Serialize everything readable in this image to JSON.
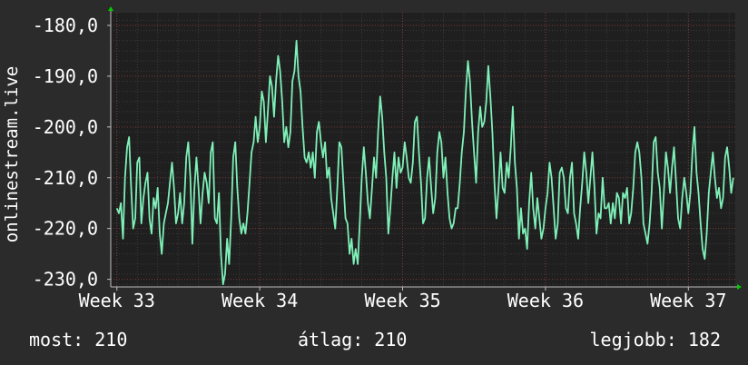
{
  "chart_data": {
    "type": "line",
    "ylabel": "onlinestream.live",
    "y_ticks": [
      "-180,0",
      "-190,0",
      "-200,0",
      "-210,0",
      "-220,0",
      "-230,0"
    ],
    "y_tick_values": [
      -180,
      -190,
      -200,
      -210,
      -220,
      -230
    ],
    "ylim": [
      -231.5,
      -177.5
    ],
    "x_ticks": [
      "Week 33",
      "Week 34",
      "Week 35",
      "Week 36",
      "Week 37"
    ],
    "x_tick_values": [
      0,
      7,
      14,
      21,
      28
    ],
    "xlim": [
      -0.3,
      30.3
    ],
    "grid": true,
    "series": [
      {
        "color": "#7ef0b8",
        "points": [
          [
            0.0,
            -216
          ],
          [
            0.1,
            -217
          ],
          [
            0.2,
            -215
          ],
          [
            0.3,
            -222
          ],
          [
            0.4,
            -210
          ],
          [
            0.5,
            -204
          ],
          [
            0.6,
            -202
          ],
          [
            0.7,
            -212
          ],
          [
            0.8,
            -220
          ],
          [
            0.9,
            -218
          ],
          [
            1.0,
            -207
          ],
          [
            1.1,
            -206
          ],
          [
            1.2,
            -219
          ],
          [
            1.3,
            -214
          ],
          [
            1.4,
            -211
          ],
          [
            1.5,
            -209
          ],
          [
            1.6,
            -218
          ],
          [
            1.7,
            -221
          ],
          [
            1.8,
            -214
          ],
          [
            1.9,
            -216
          ],
          [
            2.0,
            -212
          ],
          [
            2.1,
            -221
          ],
          [
            2.2,
            -225
          ],
          [
            2.3,
            -219
          ],
          [
            2.4,
            -217
          ],
          [
            2.5,
            -215
          ],
          [
            2.6,
            -211
          ],
          [
            2.7,
            -207
          ],
          [
            2.8,
            -212
          ],
          [
            2.9,
            -219
          ],
          [
            3.0,
            -217
          ],
          [
            3.1,
            -213
          ],
          [
            3.2,
            -219
          ],
          [
            3.3,
            -215
          ],
          [
            3.4,
            -206
          ],
          [
            3.5,
            -203
          ],
          [
            3.6,
            -210
          ],
          [
            3.7,
            -223
          ],
          [
            3.8,
            -212
          ],
          [
            3.9,
            -206
          ],
          [
            4.0,
            -212
          ],
          [
            4.1,
            -219
          ],
          [
            4.2,
            -213
          ],
          [
            4.3,
            -209
          ],
          [
            4.4,
            -211
          ],
          [
            4.5,
            -215
          ],
          [
            4.6,
            -205
          ],
          [
            4.7,
            -203
          ],
          [
            4.8,
            -218
          ],
          [
            4.9,
            -219
          ],
          [
            5.0,
            -213
          ],
          [
            5.1,
            -225
          ],
          [
            5.2,
            -231
          ],
          [
            5.3,
            -229
          ],
          [
            5.4,
            -222
          ],
          [
            5.5,
            -227
          ],
          [
            5.6,
            -218
          ],
          [
            5.7,
            -206
          ],
          [
            5.8,
            -203
          ],
          [
            5.9,
            -212
          ],
          [
            6.0,
            -218
          ],
          [
            6.1,
            -221
          ],
          [
            6.2,
            -219
          ],
          [
            6.3,
            -221
          ],
          [
            6.4,
            -217
          ],
          [
            6.5,
            -211
          ],
          [
            6.6,
            -205
          ],
          [
            6.7,
            -203
          ],
          [
            6.8,
            -198
          ],
          [
            6.9,
            -203
          ],
          [
            7.0,
            -200
          ],
          [
            7.1,
            -193
          ],
          [
            7.2,
            -195
          ],
          [
            7.3,
            -203
          ],
          [
            7.4,
            -197
          ],
          [
            7.5,
            -190
          ],
          [
            7.6,
            -192
          ],
          [
            7.7,
            -198
          ],
          [
            7.8,
            -191
          ],
          [
            7.9,
            -186
          ],
          [
            8.0,
            -189
          ],
          [
            8.1,
            -195
          ],
          [
            8.2,
            -203
          ],
          [
            8.3,
            -200
          ],
          [
            8.4,
            -204
          ],
          [
            8.5,
            -201
          ],
          [
            8.6,
            -191
          ],
          [
            8.7,
            -189
          ],
          [
            8.8,
            -183
          ],
          [
            8.9,
            -190
          ],
          [
            9.0,
            -193
          ],
          [
            9.1,
            -200
          ],
          [
            9.2,
            -206
          ],
          [
            9.3,
            -207
          ],
          [
            9.4,
            -205
          ],
          [
            9.5,
            -208
          ],
          [
            9.6,
            -205
          ],
          [
            9.7,
            -210
          ],
          [
            9.8,
            -201
          ],
          [
            9.9,
            -199
          ],
          [
            10.0,
            -203
          ],
          [
            10.1,
            -206
          ],
          [
            10.2,
            -203
          ],
          [
            10.3,
            -210
          ],
          [
            10.4,
            -208
          ],
          [
            10.5,
            -214
          ],
          [
            10.6,
            -217
          ],
          [
            10.7,
            -220
          ],
          [
            10.8,
            -212
          ],
          [
            10.9,
            -203
          ],
          [
            11.0,
            -204
          ],
          [
            11.1,
            -211
          ],
          [
            11.2,
            -218
          ],
          [
            11.3,
            -219
          ],
          [
            11.4,
            -225
          ],
          [
            11.5,
            -222
          ],
          [
            11.6,
            -227
          ],
          [
            11.7,
            -224
          ],
          [
            11.8,
            -227
          ],
          [
            11.9,
            -219
          ],
          [
            12.0,
            -210
          ],
          [
            12.1,
            -204
          ],
          [
            12.2,
            -209
          ],
          [
            12.3,
            -215
          ],
          [
            12.4,
            -218
          ],
          [
            12.5,
            -212
          ],
          [
            12.6,
            -206
          ],
          [
            12.7,
            -210
          ],
          [
            12.8,
            -201
          ],
          [
            12.9,
            -194
          ],
          [
            13.0,
            -198
          ],
          [
            13.1,
            -205
          ],
          [
            13.2,
            -210
          ],
          [
            13.3,
            -221
          ],
          [
            13.4,
            -216
          ],
          [
            13.5,
            -210
          ],
          [
            13.6,
            -205
          ],
          [
            13.7,
            -212
          ],
          [
            13.8,
            -206
          ],
          [
            13.9,
            -209
          ],
          [
            14.0,
            -208
          ],
          [
            14.1,
            -203
          ],
          [
            14.2,
            -206
          ],
          [
            14.3,
            -210
          ],
          [
            14.4,
            -211
          ],
          [
            14.5,
            -207
          ],
          [
            14.6,
            -199
          ],
          [
            14.7,
            -198
          ],
          [
            14.8,
            -205
          ],
          [
            14.9,
            -211
          ],
          [
            15.0,
            -219
          ],
          [
            15.1,
            -218
          ],
          [
            15.2,
            -210
          ],
          [
            15.3,
            -206
          ],
          [
            15.4,
            -212
          ],
          [
            15.5,
            -217
          ],
          [
            15.6,
            -214
          ],
          [
            15.7,
            -205
          ],
          [
            15.8,
            -201
          ],
          [
            15.9,
            -203
          ],
          [
            16.0,
            -210
          ],
          [
            16.1,
            -206
          ],
          [
            16.2,
            -213
          ],
          [
            16.3,
            -218
          ],
          [
            16.4,
            -220
          ],
          [
            16.5,
            -219
          ],
          [
            16.6,
            -216
          ],
          [
            16.7,
            -216
          ],
          [
            16.8,
            -211
          ],
          [
            16.9,
            -205
          ],
          [
            17.0,
            -201
          ],
          [
            17.1,
            -193
          ],
          [
            17.2,
            -187
          ],
          [
            17.3,
            -191
          ],
          [
            17.4,
            -199
          ],
          [
            17.5,
            -205
          ],
          [
            17.6,
            -211
          ],
          [
            17.7,
            -201
          ],
          [
            17.8,
            -196
          ],
          [
            17.9,
            -200
          ],
          [
            18.0,
            -199
          ],
          [
            18.1,
            -195
          ],
          [
            18.2,
            -188
          ],
          [
            18.3,
            -194
          ],
          [
            18.4,
            -201
          ],
          [
            18.5,
            -211
          ],
          [
            18.6,
            -218
          ],
          [
            18.7,
            -212
          ],
          [
            18.8,
            -205
          ],
          [
            18.9,
            -212
          ],
          [
            19.0,
            -213
          ],
          [
            19.1,
            -207
          ],
          [
            19.2,
            -210
          ],
          [
            19.3,
            -204
          ],
          [
            19.4,
            -196
          ],
          [
            19.5,
            -207
          ],
          [
            19.6,
            -212
          ],
          [
            19.7,
            -222
          ],
          [
            19.8,
            -216
          ],
          [
            19.9,
            -221
          ],
          [
            20.0,
            -220
          ],
          [
            20.1,
            -224
          ],
          [
            20.2,
            -215
          ],
          [
            20.3,
            -209
          ],
          [
            20.4,
            -216
          ],
          [
            20.5,
            -220
          ],
          [
            20.6,
            -214
          ],
          [
            20.7,
            -218
          ],
          [
            20.8,
            -222
          ],
          [
            20.9,
            -220
          ],
          [
            21.0,
            -216
          ],
          [
            21.1,
            -213
          ],
          [
            21.2,
            -207
          ],
          [
            21.3,
            -210
          ],
          [
            21.4,
            -216
          ],
          [
            21.5,
            -222
          ],
          [
            21.6,
            -219
          ],
          [
            21.7,
            -209
          ],
          [
            21.8,
            -208
          ],
          [
            21.9,
            -210
          ],
          [
            22.0,
            -216
          ],
          [
            22.1,
            -217
          ],
          [
            22.2,
            -210
          ],
          [
            22.3,
            -207
          ],
          [
            22.4,
            -217
          ],
          [
            22.5,
            -219
          ],
          [
            22.6,
            -222
          ],
          [
            22.7,
            -216
          ],
          [
            22.8,
            -211
          ],
          [
            22.9,
            -205
          ],
          [
            23.0,
            -209
          ],
          [
            23.1,
            -215
          ],
          [
            23.2,
            -210
          ],
          [
            23.3,
            -205
          ],
          [
            23.4,
            -212
          ],
          [
            23.5,
            -221
          ],
          [
            23.6,
            -217
          ],
          [
            23.7,
            -218
          ],
          [
            23.8,
            -210
          ],
          [
            23.9,
            -216
          ],
          [
            24.0,
            -216
          ],
          [
            24.1,
            -215
          ],
          [
            24.2,
            -219
          ],
          [
            24.3,
            -215
          ],
          [
            24.4,
            -218
          ],
          [
            24.5,
            -213
          ],
          [
            24.6,
            -214
          ],
          [
            24.7,
            -219
          ],
          [
            24.8,
            -213
          ],
          [
            24.9,
            -214
          ],
          [
            25.0,
            -212
          ],
          [
            25.1,
            -219
          ],
          [
            25.2,
            -217
          ],
          [
            25.3,
            -212
          ],
          [
            25.4,
            -205
          ],
          [
            25.5,
            -203
          ],
          [
            25.6,
            -205
          ],
          [
            25.7,
            -210
          ],
          [
            25.8,
            -219
          ],
          [
            25.9,
            -221
          ],
          [
            26.0,
            -223
          ],
          [
            26.1,
            -219
          ],
          [
            26.2,
            -213
          ],
          [
            26.3,
            -203
          ],
          [
            26.4,
            -202
          ],
          [
            26.5,
            -209
          ],
          [
            26.6,
            -212
          ],
          [
            26.7,
            -220
          ],
          [
            26.8,
            -213
          ],
          [
            26.9,
            -205
          ],
          [
            27.0,
            -208
          ],
          [
            27.1,
            -213
          ],
          [
            27.2,
            -208
          ],
          [
            27.3,
            -204
          ],
          [
            27.4,
            -211
          ],
          [
            27.5,
            -218
          ],
          [
            27.6,
            -220
          ],
          [
            27.7,
            -214
          ],
          [
            27.8,
            -210
          ],
          [
            27.9,
            -213
          ],
          [
            28.0,
            -217
          ],
          [
            28.1,
            -213
          ],
          [
            28.2,
            -205
          ],
          [
            28.3,
            -200
          ],
          [
            28.4,
            -209
          ],
          [
            28.5,
            -213
          ],
          [
            28.6,
            -219
          ],
          [
            28.7,
            -224
          ],
          [
            28.8,
            -226
          ],
          [
            28.9,
            -221
          ],
          [
            29.0,
            -213
          ],
          [
            29.1,
            -209
          ],
          [
            29.2,
            -205
          ],
          [
            29.3,
            -210
          ],
          [
            29.4,
            -214
          ],
          [
            29.5,
            -212
          ],
          [
            29.6,
            -216
          ],
          [
            29.7,
            -214
          ],
          [
            29.8,
            -206
          ],
          [
            29.9,
            -204
          ],
          [
            30.0,
            -208
          ],
          [
            30.1,
            -213
          ],
          [
            30.2,
            -210
          ]
        ]
      }
    ],
    "colors": {
      "background": "#2b2b2b",
      "plot_background": "#1f1f1f",
      "grid": "#4a4a4a",
      "minor_grid": "#3a3a3a",
      "major_grid": "#7a3a3a",
      "axis": "#bfbfbf",
      "axis_arrow": "#00cc00",
      "line": "#7ef0b8",
      "text": "#ffffff"
    }
  },
  "stats": {
    "now": "most: 210",
    "avg": "átlag: 210",
    "best": "legjobb: 182"
  }
}
